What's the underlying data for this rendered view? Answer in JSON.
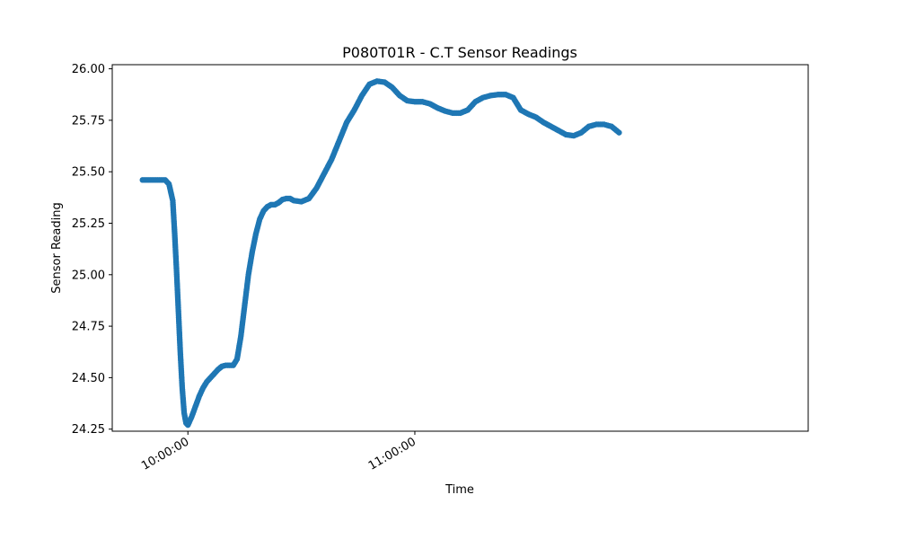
{
  "chart_data": {
    "type": "scatter",
    "title": "P080T01R - C.T Sensor Readings",
    "xlabel": "Time",
    "ylabel": "Sensor Reading",
    "x_unit": "minutes",
    "xlim": [
      -20,
      164
    ],
    "ylim": [
      24.24,
      26.02
    ],
    "x_ticks": [
      {
        "value": 0,
        "label": "10:00:00"
      },
      {
        "value": 60,
        "label": "11:00:00"
      }
    ],
    "y_ticks": [
      {
        "value": 24.25,
        "label": "24.25"
      },
      {
        "value": 24.5,
        "label": "24.50"
      },
      {
        "value": 24.75,
        "label": "24.75"
      },
      {
        "value": 25.0,
        "label": "25.00"
      },
      {
        "value": 25.25,
        "label": "25.25"
      },
      {
        "value": 25.5,
        "label": "25.50"
      },
      {
        "value": 25.75,
        "label": "25.75"
      },
      {
        "value": 26.0,
        "label": "26.00"
      }
    ],
    "grid": false,
    "series": [
      {
        "color": "#1f77b4",
        "x": [
          -12,
          -10,
          -8,
          -6,
          -5,
          -4,
          -3.5,
          -3,
          -2.5,
          -2,
          -1.5,
          -1,
          -0.5,
          0,
          0.5,
          1,
          2,
          3,
          4,
          5,
          6,
          7,
          8,
          9,
          10,
          11,
          12,
          13,
          14,
          15,
          16,
          17,
          18,
          19,
          20,
          21,
          22,
          23,
          24,
          25,
          26,
          27,
          28,
          30,
          32,
          34,
          36,
          38,
          40,
          42,
          44,
          46,
          48,
          50,
          52,
          54,
          55,
          56,
          58,
          60,
          62,
          64,
          66,
          68,
          70,
          72,
          74,
          75,
          76,
          78,
          80,
          82,
          84,
          86,
          88,
          90,
          92,
          94,
          96,
          98,
          100,
          102,
          104,
          106,
          108,
          110,
          112,
          114
        ],
        "y": [
          25.46,
          25.46,
          25.46,
          25.46,
          25.44,
          25.36,
          25.2,
          25.02,
          24.82,
          24.62,
          24.45,
          24.33,
          24.28,
          24.27,
          24.29,
          24.31,
          24.36,
          24.41,
          24.45,
          24.48,
          24.5,
          24.52,
          24.54,
          24.555,
          24.56,
          24.56,
          24.56,
          24.59,
          24.7,
          24.85,
          25.0,
          25.11,
          25.2,
          25.27,
          25.31,
          25.33,
          25.34,
          25.34,
          25.35,
          25.365,
          25.37,
          25.37,
          25.36,
          25.355,
          25.37,
          25.42,
          25.49,
          25.56,
          25.65,
          25.74,
          25.8,
          25.87,
          25.925,
          25.94,
          25.935,
          25.91,
          25.89,
          25.87,
          25.845,
          25.84,
          25.84,
          25.83,
          25.81,
          25.795,
          25.785,
          25.785,
          25.8,
          25.82,
          25.84,
          25.86,
          25.87,
          25.875,
          25.875,
          25.86,
          25.8,
          25.78,
          25.765,
          25.74,
          25.72,
          25.7,
          25.68,
          25.675,
          25.69,
          25.72,
          25.73,
          25.73,
          25.72,
          25.69
        ]
      }
    ]
  }
}
